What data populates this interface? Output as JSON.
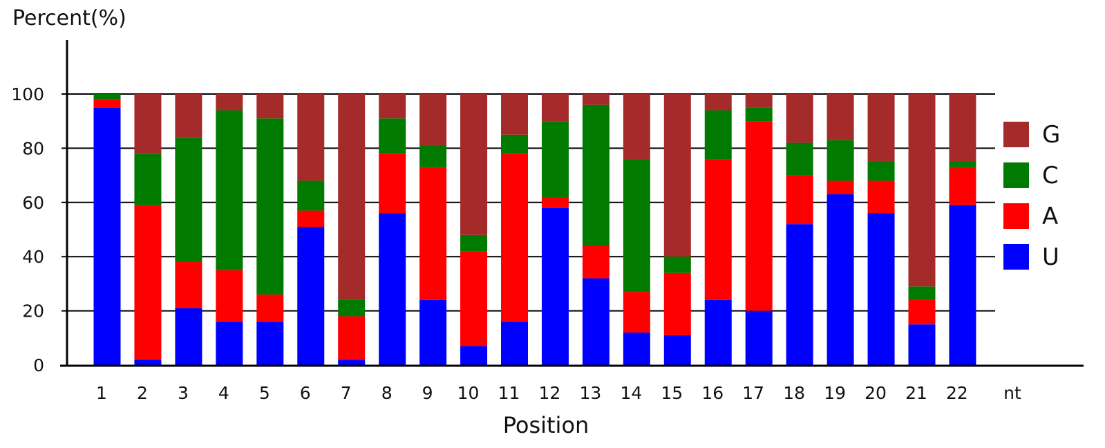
{
  "chart_data": {
    "type": "bar",
    "stacked": true,
    "title": "",
    "ylabel": "Percent(%)",
    "xlabel": "Position",
    "x_unit_label": "nt",
    "ylim": [
      0,
      100
    ],
    "y_ticks": [
      "0",
      "20",
      "40",
      "60",
      "80",
      "100"
    ],
    "categories": [
      "1",
      "2",
      "3",
      "4",
      "5",
      "6",
      "7",
      "8",
      "9",
      "10",
      "11",
      "12",
      "13",
      "14",
      "15",
      "16",
      "17",
      "18",
      "19",
      "20",
      "21",
      "22"
    ],
    "series": [
      {
        "name": "U",
        "color": "#0000ff",
        "values": [
          95,
          2,
          21,
          16,
          16,
          51,
          2,
          56,
          24,
          7,
          16,
          58,
          32,
          12,
          11,
          24,
          20,
          52,
          63,
          56,
          15,
          59
        ]
      },
      {
        "name": "A",
        "color": "#ff0000",
        "values": [
          3,
          57,
          17,
          19,
          10,
          6,
          16,
          22,
          49,
          35,
          62,
          4,
          12,
          15,
          23,
          52,
          70,
          18,
          5,
          12,
          9,
          14
        ]
      },
      {
        "name": "C",
        "color": "#007a00",
        "values": [
          2,
          19,
          46,
          59,
          65,
          11,
          6,
          13,
          8,
          6,
          7,
          28,
          52,
          49,
          6,
          18,
          5,
          12,
          15,
          7,
          5,
          2
        ]
      },
      {
        "name": "G",
        "color": "#a52a2a",
        "values": [
          0,
          22,
          16,
          6,
          9,
          32,
          76,
          9,
          19,
          52,
          15,
          10,
          4,
          24,
          60,
          6,
          5,
          18,
          17,
          25,
          71,
          25
        ]
      }
    ],
    "legend_order": [
      "G",
      "C",
      "A",
      "U"
    ],
    "legend_position": "right",
    "grid": true
  }
}
